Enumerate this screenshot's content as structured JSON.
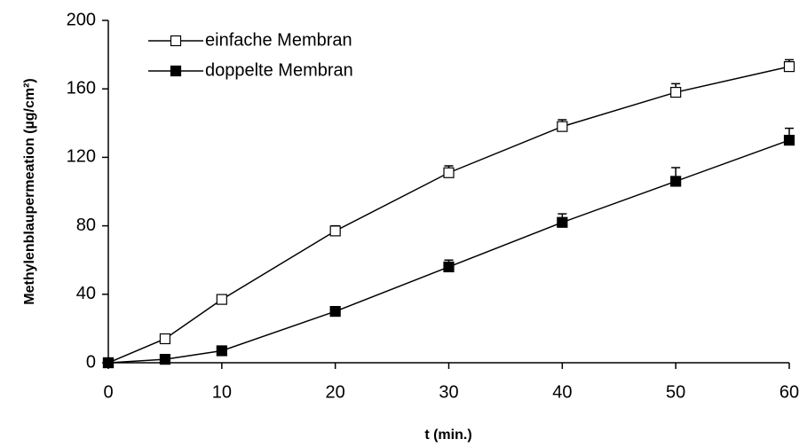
{
  "chart_data": {
    "type": "line",
    "x_label": "t (min.)",
    "y_label": "Methylenblaupermeation (µg/cm²)",
    "x": [
      0,
      5,
      10,
      20,
      30,
      40,
      50,
      60
    ],
    "series": [
      {
        "name": "einfache Membran",
        "color": "#000000",
        "marker_fill": "#ffffff",
        "values": [
          0,
          14,
          37,
          77,
          111,
          138,
          158,
          173
        ],
        "errors": [
          0,
          1,
          1,
          3,
          4,
          4,
          5,
          4
        ]
      },
      {
        "name": "doppelte Membran",
        "color": "#000000",
        "marker_fill": "#000000",
        "values": [
          0,
          2,
          7,
          30,
          56,
          82,
          106,
          130
        ],
        "errors": [
          0,
          0,
          1,
          1,
          4,
          5,
          8,
          7
        ]
      }
    ],
    "xlim": [
      0,
      60
    ],
    "xticks": [
      0,
      10,
      20,
      30,
      40,
      50,
      60
    ],
    "ylim": [
      0,
      200
    ],
    "yticks": [
      0,
      40,
      80,
      120,
      160,
      200
    ],
    "grid": false,
    "legend": "upper left"
  }
}
